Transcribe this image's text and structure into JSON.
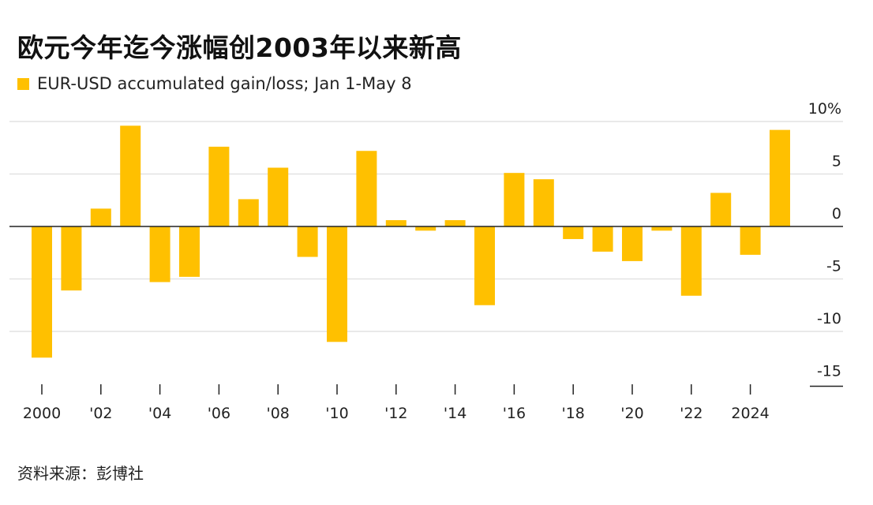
{
  "title": "欧元今年迄今涨幅创2003年以来新高",
  "source": "资料来源：彭博社",
  "colors": {
    "bar": "#FFC000",
    "grid": "#e2e2e2",
    "axis": "#222222"
  },
  "chart_data": {
    "type": "bar",
    "series": [
      {
        "name": "EUR-USD accumulated gain/loss; Jan 1-May 8"
      }
    ],
    "x": [
      2000,
      2001,
      2002,
      2003,
      2004,
      2005,
      2006,
      2007,
      2008,
      2009,
      2010,
      2011,
      2012,
      2013,
      2014,
      2015,
      2016,
      2017,
      2018,
      2019,
      2020,
      2021,
      2022,
      2023,
      2024,
      2025
    ],
    "values": [
      -12.5,
      -6.1,
      1.7,
      9.6,
      -5.3,
      -4.8,
      7.6,
      2.6,
      5.6,
      -2.9,
      -11.0,
      7.2,
      0.6,
      -0.4,
      0.6,
      -7.5,
      5.1,
      4.5,
      -1.2,
      -2.4,
      -3.3,
      -0.4,
      -6.6,
      3.2,
      -2.7,
      9.2
    ],
    "x_tick_labels": [
      "2000",
      "'02",
      "'04",
      "'06",
      "'08",
      "'10",
      "'12",
      "'14",
      "'16",
      "'18",
      "'20",
      "'22",
      "2024"
    ],
    "y_tick_labels": [
      "10%",
      "5",
      "0",
      "-5",
      "-10",
      "-15"
    ],
    "ylim": [
      -15,
      10
    ],
    "grid": true
  }
}
